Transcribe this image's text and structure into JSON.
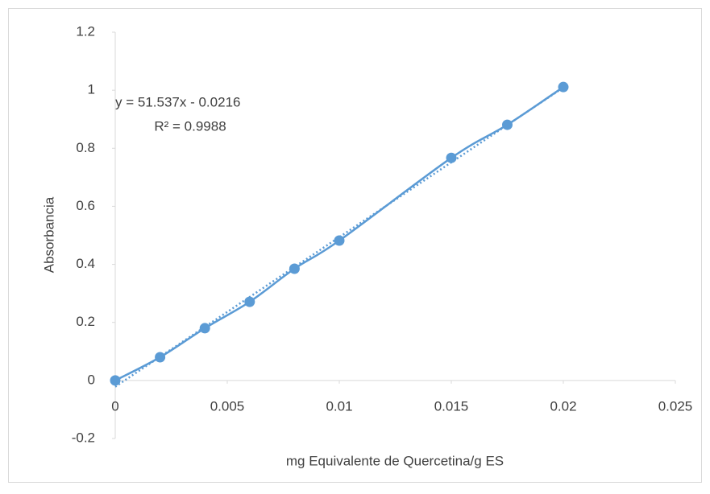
{
  "chart_data": {
    "type": "scatter",
    "x_label": "mg Equivalente de Quercetina/g ES",
    "y_label": "Absorbancia",
    "series": [
      {
        "color": "#5b9bd5",
        "x": [
          0,
          0.002,
          0.004,
          0.006,
          0.008,
          0.01,
          0.015,
          0.0175,
          0.02
        ],
        "values": [
          0,
          0.08,
          0.18,
          0.271,
          0.385,
          0.482,
          0.767,
          0.881,
          1.011
        ]
      }
    ],
    "trendline": {
      "slope": 51.537,
      "intercept": -0.0216,
      "equation": "y = 51.537x - 0.0216",
      "r2": "R² = 0.9988"
    },
    "xlim": [
      0,
      0.025
    ],
    "xticks": [
      0,
      0.005,
      0.01,
      0.015,
      0.02,
      0.025
    ],
    "ylim": [
      -0.2,
      1.2
    ],
    "yticks": [
      -0.2,
      0,
      0.2,
      0.4,
      0.6,
      0.8,
      1,
      1.2
    ]
  }
}
